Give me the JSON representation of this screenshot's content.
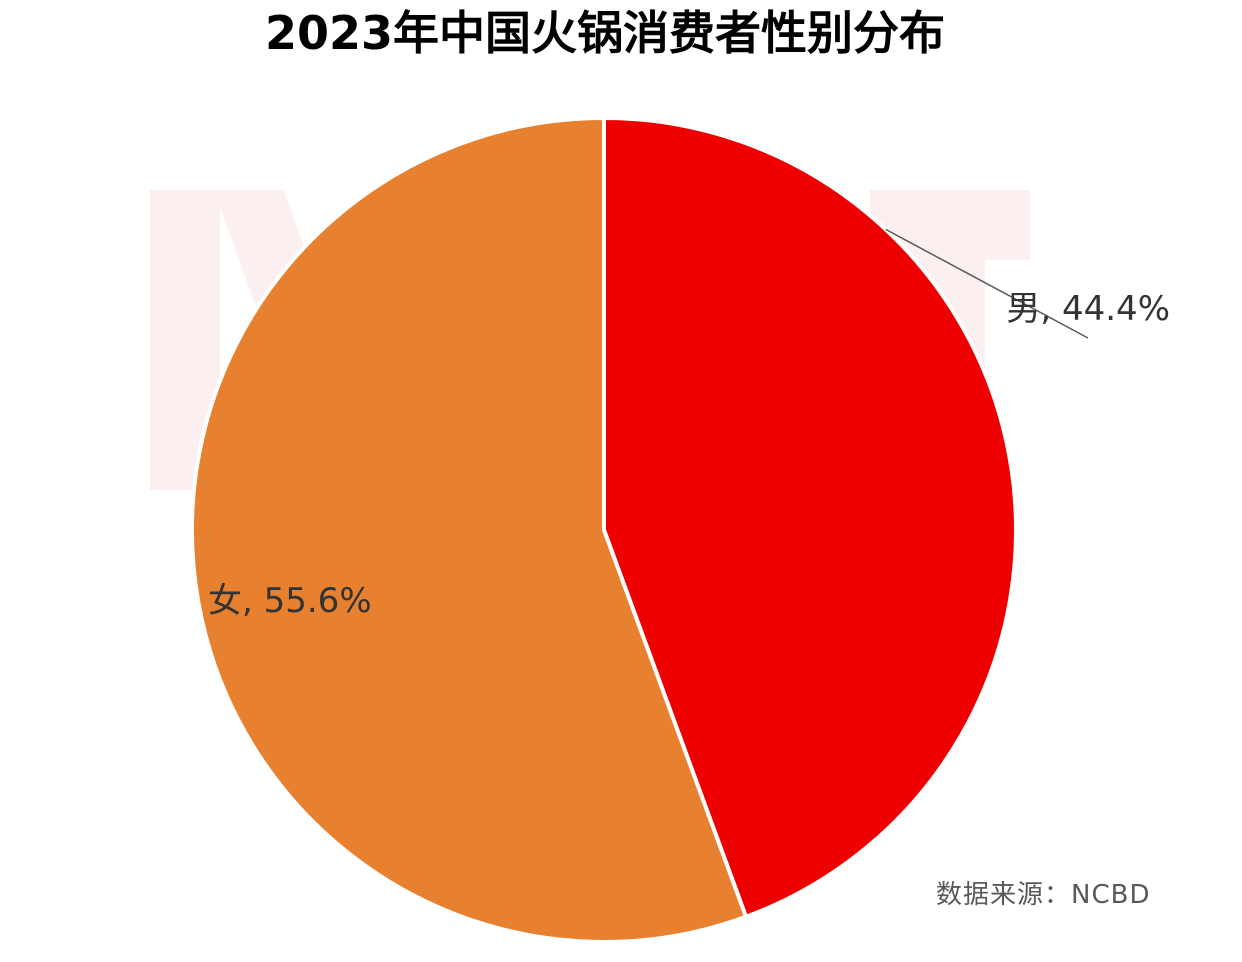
{
  "title": "2023年中国火锅消费者性别分布",
  "source_text": "数据来源：NCBD",
  "chart_data": {
    "type": "pie",
    "title": "2023年中国火锅消费者性别分布",
    "start_angle_deg": 0,
    "direction": "clockwise",
    "slices": [
      {
        "label": "男",
        "value": 44.4,
        "display": "男, 44.4%",
        "color": "#ee0000"
      },
      {
        "label": "女",
        "value": 55.6,
        "display": "女, 55.6%",
        "color": "#e8812f"
      }
    ],
    "legend": "none",
    "border_color": "#ffffff"
  }
}
